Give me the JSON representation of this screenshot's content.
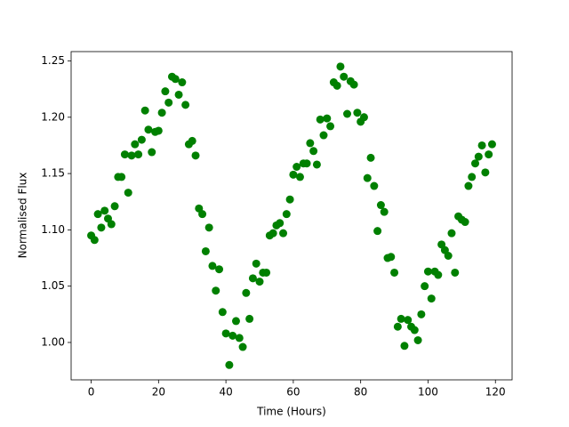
{
  "chart_data": {
    "type": "scatter",
    "x_label": "Time (Hours)",
    "y_label": "Normalised Flux",
    "color": "#008000",
    "x": [
      0,
      1,
      2,
      3,
      4,
      5,
      6,
      7,
      8,
      9,
      10,
      11,
      12,
      13,
      14,
      15,
      16,
      17,
      18,
      19,
      20,
      21,
      22,
      23,
      24,
      25,
      26,
      27,
      28,
      29,
      30,
      31,
      32,
      33,
      34,
      35,
      36,
      37,
      38,
      39,
      40,
      41,
      42,
      43,
      44,
      45,
      46,
      47,
      48,
      49,
      50,
      51,
      52,
      53,
      54,
      55,
      56,
      57,
      58,
      59,
      60,
      61,
      62,
      63,
      64,
      65,
      66,
      67,
      68,
      69,
      70,
      71,
      72,
      73,
      74,
      75,
      76,
      77,
      78,
      79,
      80,
      81,
      82,
      83,
      84,
      85,
      86,
      87,
      88,
      89,
      90,
      91,
      92,
      93,
      94,
      95,
      96,
      97,
      98,
      99,
      100,
      101,
      102,
      103,
      104,
      105,
      106,
      107,
      108,
      109,
      110,
      111,
      112,
      113,
      114,
      115,
      116,
      117,
      118,
      119
    ],
    "values": [
      1.095,
      1.091,
      1.114,
      1.102,
      1.117,
      1.11,
      1.105,
      1.121,
      1.147,
      1.147,
      1.167,
      1.133,
      1.166,
      1.176,
      1.167,
      1.18,
      1.206,
      1.189,
      1.169,
      1.187,
      1.188,
      1.204,
      1.223,
      1.213,
      1.236,
      1.234,
      1.22,
      1.231,
      1.211,
      1.176,
      1.179,
      1.166,
      1.119,
      1.114,
      1.081,
      1.102,
      1.068,
      1.046,
      1.065,
      1.027,
      1.008,
      0.98,
      1.006,
      1.019,
      1.004,
      0.996,
      1.044,
      1.021,
      1.057,
      1.07,
      1.054,
      1.062,
      1.062,
      1.095,
      1.097,
      1.104,
      1.106,
      1.097,
      1.114,
      1.127,
      1.149,
      1.156,
      1.147,
      1.159,
      1.159,
      1.177,
      1.17,
      1.158,
      1.198,
      1.184,
      1.199,
      1.192,
      1.231,
      1.228,
      1.245,
      1.236,
      1.203,
      1.232,
      1.229,
      1.204,
      1.196,
      1.2,
      1.146,
      1.164,
      1.139,
      1.099,
      1.122,
      1.116,
      1.075,
      1.076,
      1.062,
      1.014,
      1.021,
      0.997,
      1.02,
      1.014,
      1.011,
      1.002,
      1.025,
      1.05,
      1.063,
      1.039,
      1.063,
      1.06,
      1.087,
      1.082,
      1.077,
      1.097,
      1.062,
      1.112,
      1.109,
      1.107,
      1.139,
      1.147,
      1.159,
      1.165,
      1.175,
      1.151,
      1.167,
      1.176
    ],
    "xlim": [
      -5.95,
      124.95
    ],
    "xticks": [
      0,
      20,
      40,
      60,
      80,
      100,
      120
    ],
    "ylim": [
      0.9668,
      1.2583
    ],
    "yticks": [
      {
        "value": 1.0,
        "label": "1.00"
      },
      1.05,
      {
        "value": 1.1,
        "label": "1.10"
      },
      1.15,
      {
        "value": 1.2,
        "label": "1.20"
      },
      1.25
    ]
  }
}
